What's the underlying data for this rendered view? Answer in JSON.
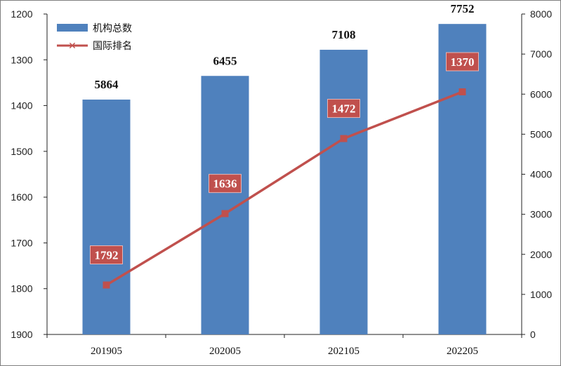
{
  "chart_data": {
    "type": "bar",
    "categories": [
      "201905",
      "202005",
      "202105",
      "202205"
    ],
    "series": [
      {
        "name": "机构总数",
        "type": "bar",
        "axis": "right",
        "values": [
          5864,
          6455,
          7108,
          7752
        ],
        "labels": [
          "5864",
          "6455",
          "7108",
          "7752"
        ],
        "color": "#4f81bd"
      },
      {
        "name": "国际排名",
        "type": "line",
        "axis": "left",
        "values": [
          1792,
          1636,
          1472,
          1370
        ],
        "labels": [
          "1792",
          "1636",
          "1472",
          "1370"
        ],
        "color": "#c0504d"
      }
    ],
    "left_axis": {
      "inverted": true,
      "range": [
        1200,
        1900
      ],
      "ticks": [
        "1200",
        "1300",
        "1400",
        "1500",
        "1600",
        "1700",
        "1800",
        "1900"
      ]
    },
    "right_axis": {
      "range": [
        0,
        8000
      ],
      "ticks": [
        "0",
        "1000",
        "2000",
        "3000",
        "4000",
        "5000",
        "6000",
        "7000",
        "8000"
      ]
    },
    "legend": {
      "placement": "top-left",
      "entries": [
        "机构总数",
        "国际排名"
      ]
    },
    "grid": false
  }
}
